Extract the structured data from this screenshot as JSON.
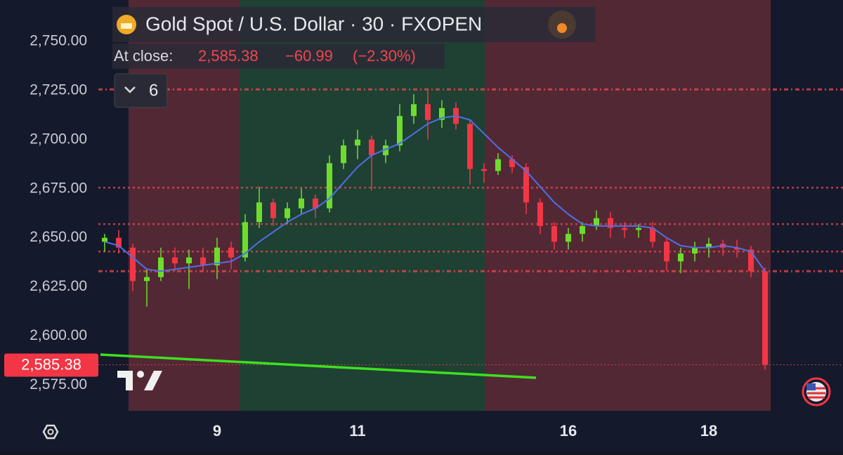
{
  "chart_data": {
    "type": "candlestick",
    "title": "Gold Spot / U.S. Dollar · 30 · FXOPEN",
    "close_caption": "At close:",
    "close_price": {
      "value": 2585.38,
      "label": "2,585.38"
    },
    "change": {
      "value": -60.99,
      "label": "−60.99"
    },
    "change_pct": {
      "value": -2.3,
      "label": "(−2.30%)"
    },
    "indicator_count": 6,
    "categories": [
      null,
      null,
      null,
      null,
      null,
      null,
      null,
      null,
      "9",
      null,
      null,
      null,
      null,
      null,
      null,
      null,
      null,
      null,
      "11",
      null,
      null,
      null,
      null,
      null,
      null,
      null,
      null,
      null,
      null,
      null,
      null,
      null,
      null,
      "16",
      null,
      null,
      null,
      null,
      null,
      null,
      null,
      null,
      null,
      "18",
      null,
      null,
      null,
      null
    ],
    "open": [
      2648,
      2650,
      2645,
      2628,
      2630,
      2640,
      2637,
      2640,
      2636,
      2645,
      2640,
      2658,
      2668,
      2660,
      2665,
      2670,
      2665,
      2688,
      2697,
      2700,
      2692,
      2697,
      2712,
      2718,
      2710,
      2716,
      2708,
      2685,
      2684,
      2690,
      2686,
      2668,
      2656,
      2648,
      2652,
      2656,
      2660,
      2655,
      2654,
      2655,
      2648,
      2638,
      2642,
      2645,
      2647,
      2645,
      2644,
      2633
    ],
    "high": [
      2652,
      2654,
      2647,
      2634,
      2645,
      2645,
      2644,
      2645,
      2650,
      2648,
      2662,
      2676,
      2670,
      2668,
      2675,
      2672,
      2692,
      2700,
      2705,
      2702,
      2700,
      2718,
      2723,
      2726,
      2720,
      2719,
      2710,
      2688,
      2693,
      2692,
      2688,
      2670,
      2658,
      2655,
      2658,
      2664,
      2663,
      2658,
      2657,
      2658,
      2650,
      2645,
      2648,
      2650,
      2649,
      2649,
      2646,
      2635
    ],
    "low": [
      2643,
      2642,
      2623,
      2615,
      2628,
      2633,
      2624,
      2633,
      2629,
      2634,
      2638,
      2655,
      2656,
      2657,
      2662,
      2660,
      2663,
      2685,
      2690,
      2674,
      2688,
      2694,
      2708,
      2700,
      2706,
      2705,
      2677,
      2678,
      2682,
      2683,
      2662,
      2652,
      2644,
      2644,
      2648,
      2654,
      2650,
      2650,
      2650,
      2645,
      2633,
      2632,
      2638,
      2640,
      2641,
      2640,
      2630,
      2583
    ],
    "close": [
      2650,
      2645,
      2628,
      2630,
      2640,
      2637,
      2640,
      2636,
      2645,
      2640,
      2658,
      2668,
      2660,
      2665,
      2670,
      2665,
      2688,
      2697,
      2700,
      2692,
      2697,
      2712,
      2718,
      2710,
      2716,
      2708,
      2685,
      2684,
      2690,
      2686,
      2668,
      2656,
      2648,
      2652,
      2656,
      2660,
      2655,
      2654,
      2655,
      2648,
      2638,
      2642,
      2645,
      2647,
      2645,
      2644,
      2633,
      2585.38
    ],
    "up_color": "#6fdc2c",
    "down_color": "#f23645",
    "ma": {
      "color": "#4f6fe8",
      "values": [
        2648,
        2646,
        2640,
        2634,
        2633,
        2634,
        2635,
        2636,
        2637,
        2638,
        2642,
        2648,
        2653,
        2658,
        2662,
        2665,
        2670,
        2678,
        2686,
        2692,
        2695,
        2698,
        2703,
        2708,
        2711,
        2712,
        2710,
        2703,
        2696,
        2690,
        2684,
        2676,
        2668,
        2662,
        2657,
        2656,
        2656,
        2656,
        2656,
        2655,
        2650,
        2646,
        2645,
        2645,
        2646,
        2645,
        2643,
        2633
      ]
    },
    "levels": [
      {
        "value": 2725.5,
        "style": "dashdot"
      },
      {
        "value": 2675.5,
        "style": "dotted"
      },
      {
        "value": 2657,
        "style": "dotted"
      },
      {
        "value": 2643,
        "style": "dotted"
      },
      {
        "value": 2633,
        "style": "dashdot"
      },
      {
        "value": 2585.38,
        "style": "fine"
      }
    ],
    "level_color": "#f0474f",
    "trendline": {
      "x": [
        -0.3,
        30.7
      ],
      "y": [
        2590.6,
        2578.8
      ],
      "color": "#3ee01f"
    },
    "sessions": [
      {
        "start": 1.7,
        "end": 9.6,
        "color": "#5a2a36"
      },
      {
        "start": 9.6,
        "end": 27.05,
        "color": "#1f4634"
      },
      {
        "start": 27.05,
        "end": 47.4,
        "color": "#5a2a36"
      }
    ],
    "ylim": [
      2562,
      2771
    ],
    "yticks": [
      {
        "value": 2575,
        "label": "2,575.00"
      },
      {
        "value": 2600,
        "label": "2,600.00"
      },
      {
        "value": 2625,
        "label": "2,625.00"
      },
      {
        "value": 2650,
        "label": "2,650.00"
      },
      {
        "value": 2675,
        "label": "2,675.00"
      },
      {
        "value": 2700,
        "label": "2,700.00"
      },
      {
        "value": 2725,
        "label": "2,725.00"
      },
      {
        "value": 2750,
        "label": "2,750.00"
      }
    ]
  }
}
